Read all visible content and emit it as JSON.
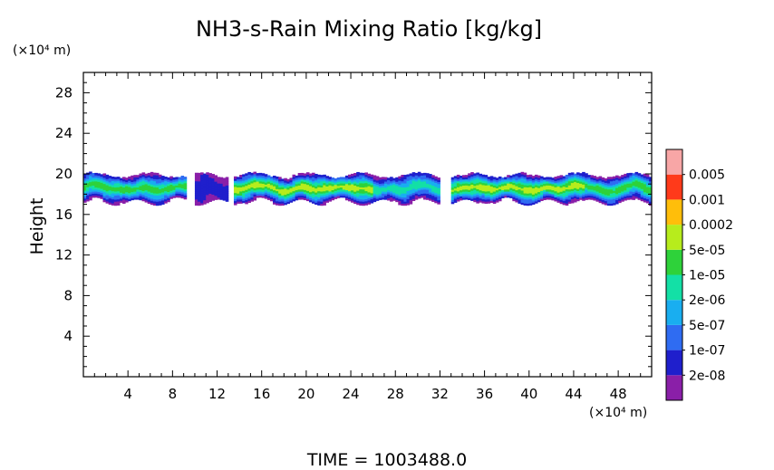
{
  "chart_data": {
    "type": "heatmap",
    "title": "NH3-s-Rain Mixing Ratio [kg/kg]",
    "ylabel": "Height",
    "x_unit_label": "(×10⁴ m)",
    "y_unit_label": "(×10⁴ m)",
    "xlim": [
      0,
      51
    ],
    "ylim": [
      0,
      30
    ],
    "x_ticks": [
      4,
      8,
      12,
      16,
      20,
      24,
      28,
      32,
      36,
      40,
      44,
      48
    ],
    "y_ticks": [
      4,
      8,
      12,
      16,
      20,
      24,
      28
    ],
    "x_tick_labels": [
      "4",
      "8",
      "12",
      "16",
      "20",
      "24",
      "28",
      "32",
      "36",
      "40",
      "44",
      "48"
    ],
    "y_tick_labels": [
      "4",
      "8",
      "12",
      "16",
      "20",
      "24",
      "28"
    ],
    "legend": {
      "levels": [
        "2e-08",
        "1e-07",
        "5e-07",
        "2e-06",
        "1e-05",
        "5e-05",
        "0.0002",
        "0.001",
        "0.005"
      ],
      "colors": [
        "#8a1fa8",
        "#1f1fcc",
        "#2f6cf2",
        "#19aef0",
        "#13e0a6",
        "#2ed23a",
        "#b7ec1c",
        "#ffbe0a",
        "#ff3a1a",
        "#f8a6a6"
      ]
    },
    "layer": {
      "base_height": 17.2,
      "top_height": 19.8,
      "description_regions": [
        {
          "x": [
            0,
            9.3
          ],
          "level_max": 5
        },
        {
          "x": [
            10,
            13
          ],
          "level_max": 1
        },
        {
          "x": [
            13.5,
            26
          ],
          "level_max": 6
        },
        {
          "x": [
            26,
            32
          ],
          "level_max": 4
        },
        {
          "x": [
            33,
            45
          ],
          "level_max": 6
        },
        {
          "x": [
            45,
            51
          ],
          "level_max": 5
        }
      ]
    },
    "time_label": "TIME = 1003488.0"
  }
}
